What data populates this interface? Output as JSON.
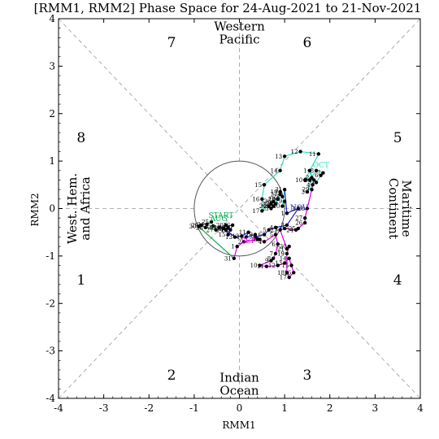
{
  "chart_data": {
    "type": "line",
    "title": "[RMM1, RMM2] Phase Space for 24-Aug-2021 to 21-Nov-2021",
    "xlabel": "RMM1",
    "ylabel": "RMM2",
    "xlim": [
      -4,
      4
    ],
    "ylim": [
      -4,
      4
    ],
    "xticks": [
      "-4",
      "-3",
      "-2",
      "-1",
      "0",
      "1",
      "2",
      "3",
      "4"
    ],
    "yticks": [
      "-4",
      "-3",
      "-2",
      "-1",
      "0",
      "1",
      "2",
      "3",
      "4"
    ],
    "grid": "dashed diagonals and axes",
    "unit_circle_radius": 1,
    "phase_numbers": [
      {
        "label": "1",
        "x": -3.5,
        "y": -1.5
      },
      {
        "label": "2",
        "x": -1.5,
        "y": -3.5
      },
      {
        "label": "3",
        "x": 1.5,
        "y": -3.5
      },
      {
        "label": "4",
        "x": 3.5,
        "y": -1.5
      },
      {
        "label": "5",
        "x": 3.5,
        "y": 1.5
      },
      {
        "label": "6",
        "x": 1.5,
        "y": 3.5
      },
      {
        "label": "7",
        "x": -1.5,
        "y": 3.5
      },
      {
        "label": "8",
        "x": -3.5,
        "y": 1.5
      }
    ],
    "regions": [
      {
        "lines": [
          "Western",
          "Pacific"
        ],
        "x": 0,
        "y": 3.7,
        "rotate": 0
      },
      {
        "lines": [
          "Indian",
          "Ocean"
        ],
        "x": 0,
        "y": -3.7,
        "rotate": 0
      },
      {
        "lines": [
          "West. Hem.",
          "and Africa"
        ],
        "x": -3.55,
        "y": 0,
        "rotate": -90
      },
      {
        "lines": [
          "Maritime",
          "Continent"
        ],
        "x": 3.55,
        "y": 0,
        "rotate": 90
      }
    ],
    "start_label": "START",
    "series": [
      {
        "name": "AUG",
        "color": "#00b050",
        "points": [
          {
            "day": "24",
            "x": -0.72,
            "y": -0.33
          },
          {
            "day": "25",
            "x": -0.62,
            "y": -0.28
          },
          {
            "day": "26",
            "x": -0.58,
            "y": -0.37
          },
          {
            "day": "27",
            "x": -0.52,
            "y": -0.45
          },
          {
            "day": "28",
            "x": -0.75,
            "y": -0.4
          },
          {
            "day": "29",
            "x": -0.85,
            "y": -0.35
          },
          {
            "day": "30",
            "x": -0.9,
            "y": -0.38
          },
          {
            "day": "31",
            "x": -0.12,
            "y": -1.05
          }
        ]
      },
      {
        "name": "SEP",
        "color": "#e000e0",
        "points": [
          {
            "day": "1",
            "x": -0.05,
            "y": -0.8
          },
          {
            "day": "2",
            "x": 0.1,
            "y": -0.7
          },
          {
            "day": "3",
            "x": 0.4,
            "y": -0.65
          },
          {
            "day": "4",
            "x": 0.55,
            "y": -0.7
          },
          {
            "day": "5",
            "x": 0.8,
            "y": -0.55
          },
          {
            "day": "6",
            "x": 0.85,
            "y": -0.75
          },
          {
            "day": "7",
            "x": 0.8,
            "y": -0.95
          },
          {
            "day": "8",
            "x": 0.75,
            "y": -1.05
          },
          {
            "day": "9",
            "x": 0.7,
            "y": -1.1
          },
          {
            "day": "10",
            "x": 0.45,
            "y": -1.2
          },
          {
            "day": "11",
            "x": 0.6,
            "y": -1.22
          },
          {
            "day": "12",
            "x": 0.85,
            "y": -1.2
          },
          {
            "day": "13",
            "x": 1.0,
            "y": -1.15
          },
          {
            "day": "14",
            "x": 1.1,
            "y": -1.05
          },
          {
            "day": "15",
            "x": 1.15,
            "y": -1.2
          },
          {
            "day": "16",
            "x": 1.2,
            "y": -1.35
          },
          {
            "day": "17",
            "x": 1.1,
            "y": -1.45
          },
          {
            "day": "18",
            "x": 1.05,
            "y": -1.35
          },
          {
            "day": "19",
            "x": 1.05,
            "y": -0.95
          },
          {
            "day": "20",
            "x": 1.1,
            "y": -0.8
          },
          {
            "day": "21",
            "x": 1.05,
            "y": -0.85
          },
          {
            "day": "22",
            "x": 0.9,
            "y": -0.45
          },
          {
            "day": "23",
            "x": 1.0,
            "y": -0.42
          },
          {
            "day": "24",
            "x": 1.25,
            "y": -0.45
          },
          {
            "day": "25",
            "x": 1.3,
            "y": -0.42
          },
          {
            "day": "26",
            "x": 1.45,
            "y": -0.3
          },
          {
            "day": "27",
            "x": 1.45,
            "y": -0.2
          },
          {
            "day": "28",
            "x": 1.5,
            "y": 0.0
          },
          {
            "day": "29",
            "x": 1.6,
            "y": 0.4
          },
          {
            "day": "30",
            "x": 1.65,
            "y": 0.6
          }
        ]
      },
      {
        "name": "OCT",
        "color": "#2ee0c0",
        "points": [
          {
            "day": "1",
            "x": 1.55,
            "y": 0.8
          },
          {
            "day": "2",
            "x": 1.6,
            "y": 0.65
          },
          {
            "day": "3",
            "x": 1.5,
            "y": 0.35
          },
          {
            "day": "4",
            "x": 1.62,
            "y": 0.5
          },
          {
            "day": "5",
            "x": 1.7,
            "y": 0.55
          },
          {
            "day": "6",
            "x": 1.8,
            "y": 0.7
          },
          {
            "day": "7",
            "x": 1.85,
            "y": 0.75
          },
          {
            "day": "8",
            "x": 1.7,
            "y": 0.8
          },
          {
            "day": "9",
            "x": 1.55,
            "y": 0.6
          },
          {
            "day": "10",
            "x": 1.45,
            "y": 0.6
          },
          {
            "day": "11",
            "x": 1.75,
            "y": 1.15
          },
          {
            "day": "12",
            "x": 1.35,
            "y": 1.2
          },
          {
            "day": "13",
            "x": 1.0,
            "y": 1.1
          },
          {
            "day": "14",
            "x": 0.9,
            "y": 0.8
          },
          {
            "day": "15",
            "x": 0.55,
            "y": 0.5
          },
          {
            "day": "16",
            "x": 0.5,
            "y": 0.2
          },
          {
            "day": "17",
            "x": 0.5,
            "y": -0.05
          },
          {
            "day": "18",
            "x": 0.85,
            "y": 0.2
          },
          {
            "day": "19",
            "x": 0.9,
            "y": 0.35
          },
          {
            "day": "20",
            "x": 0.85,
            "y": 0.2
          },
          {
            "day": "21",
            "x": 0.8,
            "y": 0.1
          },
          {
            "day": "22",
            "x": 0.75,
            "y": 0.05
          },
          {
            "day": "23",
            "x": 0.7,
            "y": 0.0
          },
          {
            "day": "24",
            "x": 0.65,
            "y": 0.05
          },
          {
            "day": "25",
            "x": 0.7,
            "y": 0.1
          },
          {
            "day": "26",
            "x": 0.75,
            "y": 0.15
          },
          {
            "day": "27",
            "x": 0.9,
            "y": 0.3
          },
          {
            "day": "28",
            "x": 0.95,
            "y": 0.25
          },
          {
            "day": "29",
            "x": 1.0,
            "y": 0.15
          },
          {
            "day": "30",
            "x": 0.95,
            "y": 0.05
          },
          {
            "day": "31",
            "x": 1.0,
            "y": 0.4
          }
        ]
      },
      {
        "name": "NOV",
        "color": "#1f1fd0",
        "points": [
          {
            "day": "1",
            "x": 1.05,
            "y": -0.1
          },
          {
            "day": "2",
            "x": 1.3,
            "y": 0.0
          },
          {
            "day": "3",
            "x": 1.05,
            "y": -0.35
          },
          {
            "day": "4",
            "x": 0.8,
            "y": -0.4
          },
          {
            "day": "5",
            "x": 0.65,
            "y": -0.45
          },
          {
            "day": "6",
            "x": 0.55,
            "y": -0.55
          },
          {
            "day": "7",
            "x": 0.35,
            "y": -0.6
          },
          {
            "day": "8",
            "x": 0.45,
            "y": -0.65
          },
          {
            "day": "9",
            "x": 0.35,
            "y": -0.55
          },
          {
            "day": "10",
            "x": 0.15,
            "y": -0.6
          },
          {
            "day": "11",
            "x": 0.2,
            "y": -0.5
          },
          {
            "day": "12",
            "x": 0.05,
            "y": -0.58
          },
          {
            "day": "13",
            "x": -0.1,
            "y": -0.6
          },
          {
            "day": "14",
            "x": -0.3,
            "y": -0.45
          },
          {
            "day": "15",
            "x": -0.25,
            "y": -0.55
          },
          {
            "day": "16",
            "x": -0.15,
            "y": -0.35
          },
          {
            "day": "17",
            "x": -0.45,
            "y": -0.4
          },
          {
            "day": "18",
            "x": -0.35,
            "y": -0.42
          },
          {
            "day": "19",
            "x": -0.2,
            "y": -0.45
          },
          {
            "day": "20",
            "x": -0.3,
            "y": -0.35
          },
          {
            "day": "21",
            "x": -0.25,
            "y": -0.4
          }
        ]
      }
    ]
  }
}
